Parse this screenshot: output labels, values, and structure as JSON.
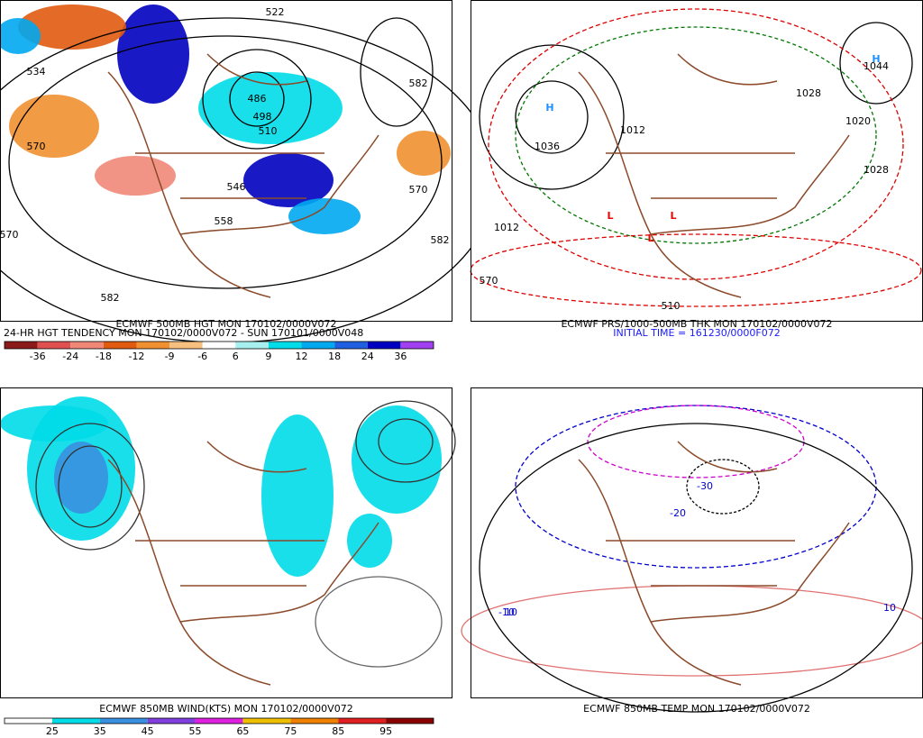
{
  "panels": [
    {
      "captions": [
        "ECMWF 500MB HGT MON 170102/0000V072",
        "24-HR HGT TENDENCY MON 170102/0000V072 - SUN 170101/0000V048"
      ],
      "contour_labels": [
        "522",
        "534",
        "570",
        "546",
        "558",
        "582",
        "570",
        "582",
        "486",
        "498",
        "510",
        "570",
        "582"
      ],
      "colorbar": {
        "colors": [
          "#8b1a1a",
          "#e05050",
          "#f08878",
          "#e05a10",
          "#f09030",
          "#f8c080",
          "#ffffff",
          "#a8f0f0",
          "#00dce8",
          "#00a8f0",
          "#2060e0",
          "#0000c0",
          "#a040f0"
        ],
        "labels": [
          "-36",
          "-24",
          "-18",
          "-12",
          "-9",
          "-6",
          "6",
          "9",
          "12",
          "18",
          "24",
          "36"
        ]
      }
    },
    {
      "captions": [
        "ECMWF PRS/1000-500MB THK MON 170102/0000V072",
        "INITIAL TIME = 161230/0000F072"
      ],
      "contour_labels": [
        "1036",
        "1044",
        "1028",
        "1028",
        "1012",
        "1012",
        "1020",
        "570",
        "510",
        "H",
        "H",
        "L",
        "L",
        "L"
      ]
    },
    {
      "captions": [
        "ECMWF 850MB WIND(KTS) MON 170102/0000V072"
      ],
      "colorbar": {
        "colors": [
          "#ffffff",
          "#00dce8",
          "#3a90e0",
          "#8040e0",
          "#e020e0",
          "#f0c000",
          "#f08000",
          "#e02020",
          "#8b0000"
        ],
        "labels": [
          "25",
          "35",
          "45",
          "55",
          "65",
          "75",
          "85",
          "95"
        ]
      }
    },
    {
      "captions": [
        "ECMWF 850MB TEMP MON 170102/0000V072"
      ],
      "contour_labels": [
        "-10",
        "-20",
        "-30",
        "10",
        "10"
      ]
    }
  ]
}
